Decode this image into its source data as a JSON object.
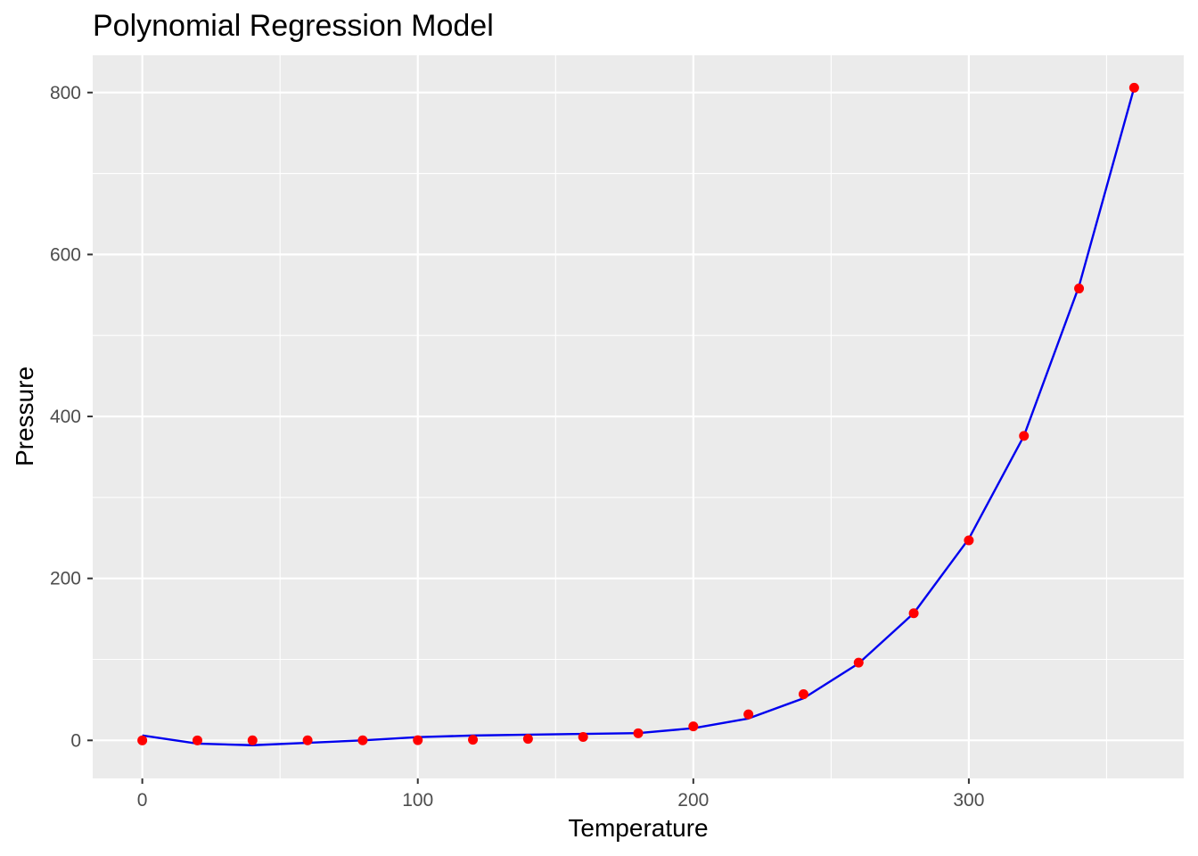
{
  "chart_data": {
    "type": "scatter",
    "title": "Polynomial Regression Model",
    "xlabel": "Temperature",
    "ylabel": "Pressure",
    "xlim": [
      -18,
      378
    ],
    "ylim": [
      -47,
      846
    ],
    "x_ticks": [
      0,
      100,
      200,
      300
    ],
    "x_tick_labels": [
      "0",
      "100",
      "200",
      "300"
    ],
    "y_ticks": [
      0,
      200,
      400,
      600,
      800
    ],
    "y_tick_labels": [
      "0",
      "200",
      "400",
      "600",
      "800"
    ],
    "x_minor_grid": [
      50,
      150,
      250,
      350
    ],
    "y_minor_grid": [
      100,
      300,
      500,
      700
    ],
    "grid": true,
    "panel_background": "#EBEBEB",
    "grid_color": "#FFFFFF",
    "series": [
      {
        "kind": "points",
        "color": "#FF0000",
        "x": [
          0,
          20,
          40,
          60,
          80,
          100,
          120,
          140,
          160,
          180,
          200,
          220,
          240,
          260,
          280,
          300,
          320,
          340,
          360
        ],
        "y": [
          0.0002,
          0.0012,
          0.006,
          0.03,
          0.09,
          0.27,
          0.75,
          1.85,
          4.2,
          8.8,
          17.3,
          32.1,
          57.0,
          96.0,
          157.0,
          247.0,
          376.0,
          558.0,
          806.0
        ]
      },
      {
        "kind": "line",
        "color": "#0000EE",
        "x": [
          0,
          20,
          40,
          60,
          80,
          100,
          120,
          140,
          160,
          180,
          200,
          220,
          240,
          260,
          280,
          300,
          320,
          340,
          360
        ],
        "y": [
          6.0,
          -4.0,
          -6.0,
          -3.0,
          0.0,
          4.0,
          6.0,
          7.0,
          8.0,
          9.0,
          15.0,
          27.0,
          52.0,
          95.0,
          157.0,
          249.0,
          376.0,
          561.0,
          806.0
        ]
      }
    ]
  }
}
